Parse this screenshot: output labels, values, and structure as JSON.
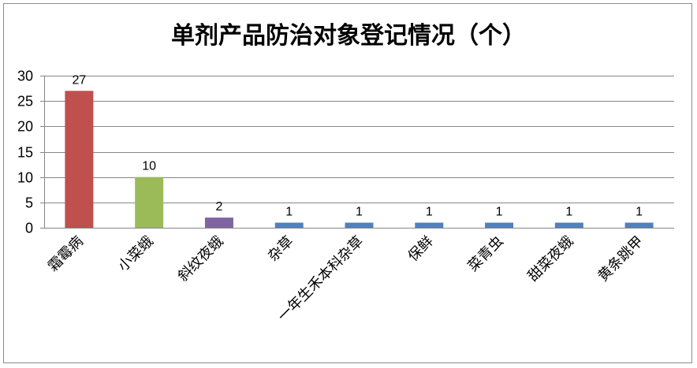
{
  "chart_data": {
    "type": "bar",
    "title": "单剂产品防治对象登记情况（个）",
    "xlabel": "",
    "ylabel": "",
    "categories": [
      "霜霉病",
      "小菜蛾",
      "斜纹夜蛾",
      "杂草",
      "一年生禾本科杂草",
      "保鲜",
      "菜青虫",
      "甜菜夜蛾",
      "黄条跳甲"
    ],
    "values": [
      27,
      10,
      2,
      1,
      1,
      1,
      1,
      1,
      1
    ],
    "bar_colors": [
      "#C0504D",
      "#9BBB59",
      "#8064A2",
      "#4F81BD",
      "#4F81BD",
      "#4F81BD",
      "#4F81BD",
      "#4F81BD",
      "#4F81BD"
    ],
    "ylim": [
      0,
      30
    ],
    "yticks": [
      0,
      5,
      10,
      15,
      20,
      25,
      30
    ],
    "grid": true,
    "legend": "none",
    "data_labels": true
  }
}
